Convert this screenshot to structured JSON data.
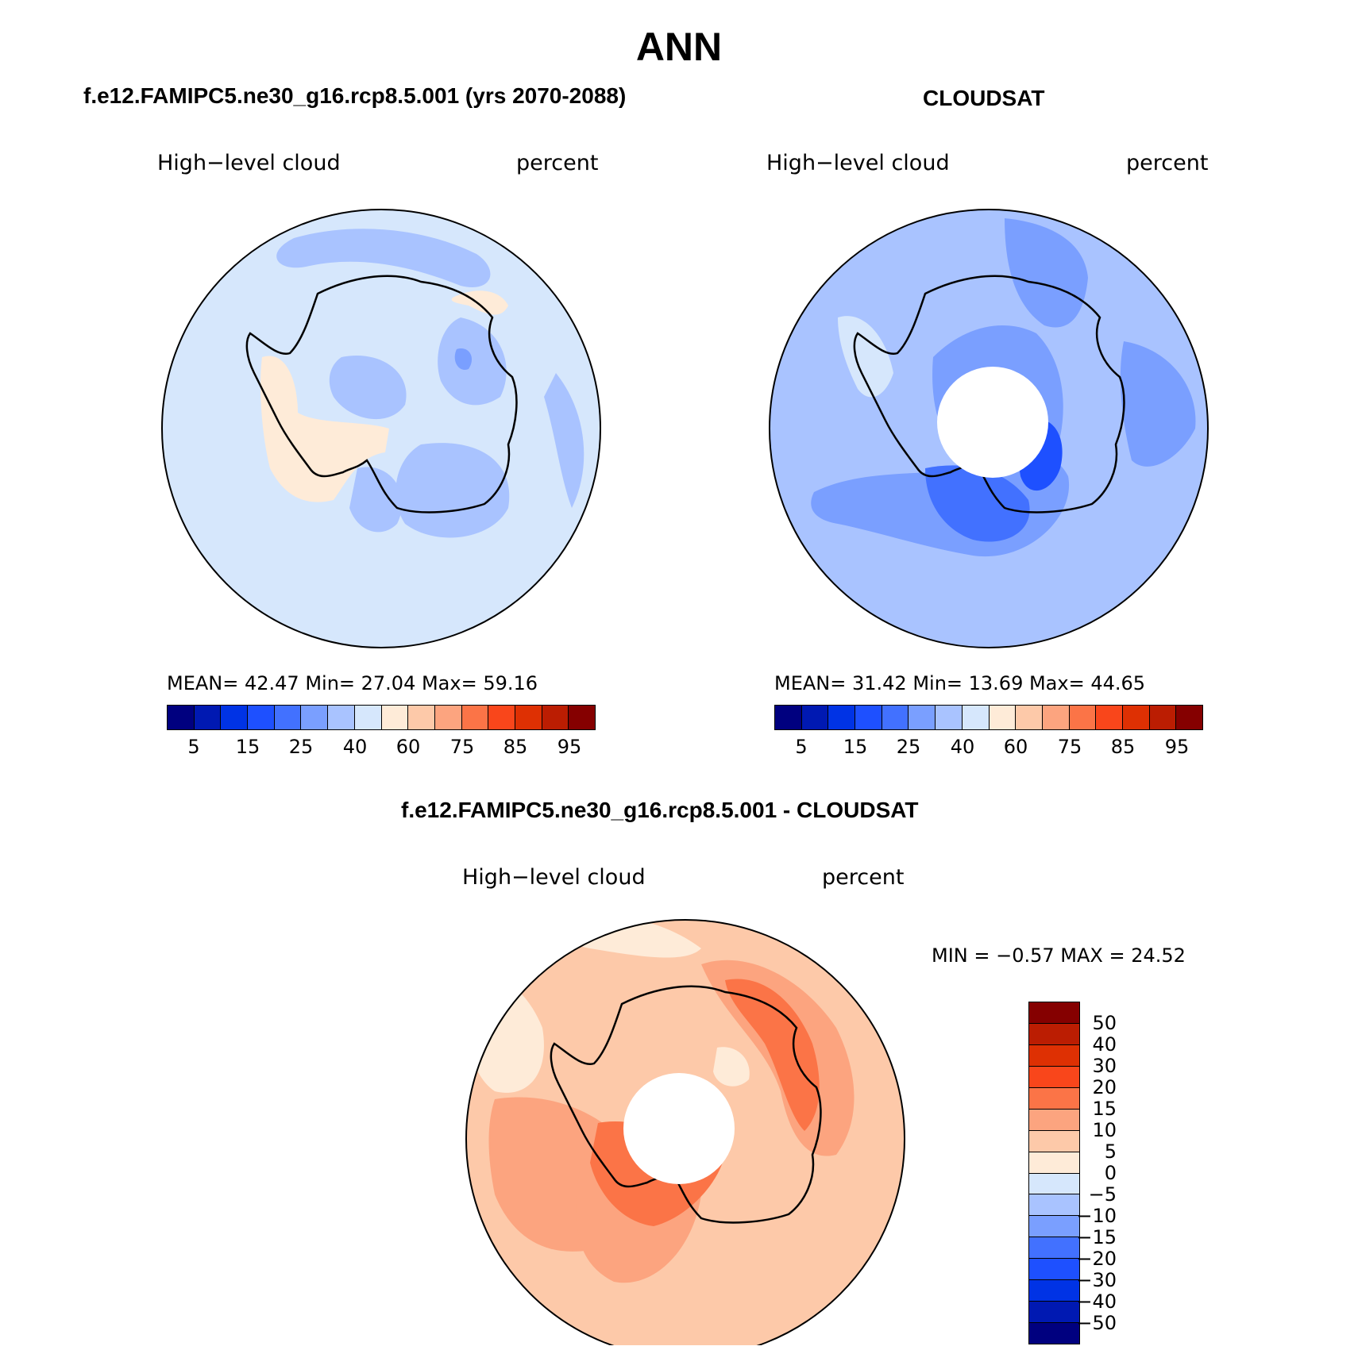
{
  "title": "ANN",
  "colors": {
    "seq_palette": [
      "#00007f",
      "#0019b2",
      "#0033e5",
      "#1e50ff",
      "#4271ff",
      "#7a9fff",
      "#a9c3ff",
      "#d6e7fc",
      "#feebd8",
      "#fdc9a9",
      "#fca47f",
      "#fb7447",
      "#f9461b",
      "#de3003",
      "#bb1d02",
      "#850000"
    ],
    "diff_palette": [
      "#00007f",
      "#0019b2",
      "#0033e5",
      "#1e50ff",
      "#4271ff",
      "#7a9fff",
      "#a9c3ff",
      "#d6e7fc",
      "#feebd8",
      "#fdc9a9",
      "#fca47f",
      "#fb7447",
      "#f9461b",
      "#de3003",
      "#bb1d02",
      "#850000"
    ]
  },
  "panels": [
    {
      "title": "f.e12.FAMIPC5.ne30_g16.rcp8.5.001 (yrs 2070-2088)",
      "left_label": "High−level cloud",
      "right_label": "percent",
      "stats": "MEAN=   42.47   Min=   27.04   Max=   59.16",
      "colorbar_ticks": [
        "5",
        "15",
        "25",
        "40",
        "60",
        "75",
        "85",
        "95"
      ]
    },
    {
      "title": "CLOUDSAT",
      "left_label": "High−level cloud",
      "right_label": "percent",
      "stats": "MEAN=   31.42   Min=   13.69   Max=   44.65",
      "colorbar_ticks": [
        "5",
        "15",
        "25",
        "40",
        "60",
        "75",
        "85",
        "95"
      ]
    },
    {
      "title": "f.e12.FAMIPC5.ne30_g16.rcp8.5.001 - CLOUDSAT",
      "left_label": "High−level cloud",
      "right_label": "percent",
      "stats": "MIN =   −0.57 MAX =   24.52",
      "colorbar_ticks": [
        "50",
        "40",
        "30",
        "20",
        "15",
        "10",
        "5",
        "0",
        "−5",
        "−10",
        "−15",
        "−20",
        "−30",
        "−40",
        "−50"
      ]
    }
  ]
}
